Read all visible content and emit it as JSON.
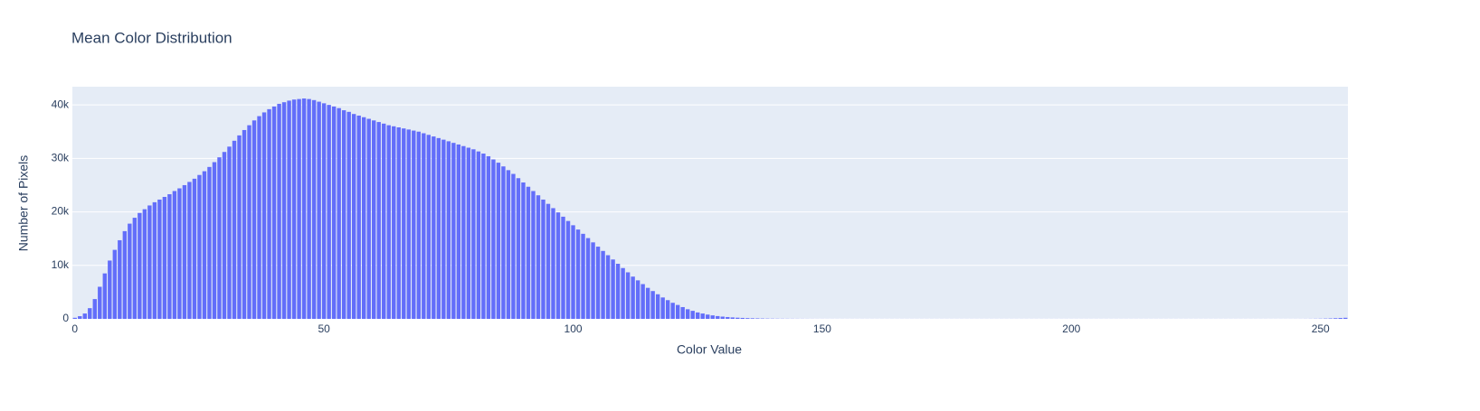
{
  "chart_data": {
    "type": "bar",
    "title": "Mean Color Distribution",
    "x_label": "Color Value",
    "y_label": "Number of Pixels",
    "color": "#636efa",
    "x": [
      0,
      1,
      2,
      3,
      4,
      5,
      6,
      7,
      8,
      9,
      10,
      11,
      12,
      13,
      14,
      15,
      16,
      17,
      18,
      19,
      20,
      21,
      22,
      23,
      24,
      25,
      26,
      27,
      28,
      29,
      30,
      31,
      32,
      33,
      34,
      35,
      36,
      37,
      38,
      39,
      40,
      41,
      42,
      43,
      44,
      45,
      46,
      47,
      48,
      49,
      50,
      51,
      52,
      53,
      54,
      55,
      56,
      57,
      58,
      59,
      60,
      61,
      62,
      63,
      64,
      65,
      66,
      67,
      68,
      69,
      70,
      71,
      72,
      73,
      74,
      75,
      76,
      77,
      78,
      79,
      80,
      81,
      82,
      83,
      84,
      85,
      86,
      87,
      88,
      89,
      90,
      91,
      92,
      93,
      94,
      95,
      96,
      97,
      98,
      99,
      100,
      101,
      102,
      103,
      104,
      105,
      106,
      107,
      108,
      109,
      110,
      111,
      112,
      113,
      114,
      115,
      116,
      117,
      118,
      119,
      120,
      121,
      122,
      123,
      124,
      125,
      126,
      127,
      128,
      129,
      130,
      131,
      132,
      133,
      134,
      135,
      136,
      137,
      138,
      139,
      140,
      141,
      142,
      143,
      144,
      145,
      146,
      147,
      148,
      149,
      150,
      151,
      152,
      153,
      154,
      155,
      156,
      157,
      158,
      159,
      160,
      161,
      162,
      163,
      164,
      165,
      166,
      167,
      168,
      169,
      170,
      171,
      172,
      173,
      174,
      175,
      176,
      177,
      178,
      179,
      180,
      181,
      182,
      183,
      184,
      185,
      186,
      187,
      188,
      189,
      190,
      191,
      192,
      193,
      194,
      195,
      196,
      197,
      198,
      199,
      200,
      201,
      202,
      203,
      204,
      205,
      206,
      207,
      208,
      209,
      210,
      211,
      212,
      213,
      214,
      215,
      216,
      217,
      218,
      219,
      220,
      221,
      222,
      223,
      224,
      225,
      226,
      227,
      228,
      229,
      230,
      231,
      232,
      233,
      234,
      235,
      236,
      237,
      238,
      239,
      240,
      241,
      242,
      243,
      244,
      245,
      246,
      247,
      248,
      249,
      250,
      251,
      252,
      253,
      254,
      255
    ],
    "values": [
      200,
      500,
      1000,
      2000,
      3700,
      6000,
      8500,
      10900,
      12900,
      14700,
      16400,
      17800,
      18900,
      19800,
      20500,
      21200,
      21800,
      22300,
      22800,
      23300,
      23900,
      24400,
      25000,
      25600,
      26200,
      26900,
      27600,
      28400,
      29300,
      30200,
      31200,
      32200,
      33300,
      34300,
      35300,
      36200,
      37100,
      37900,
      38600,
      39200,
      39700,
      40200,
      40500,
      40800,
      41000,
      41100,
      41200,
      41100,
      40900,
      40600,
      40300,
      40000,
      39700,
      39400,
      39000,
      38700,
      38300,
      38000,
      37700,
      37400,
      37100,
      36800,
      36500,
      36200,
      36000,
      35800,
      35600,
      35400,
      35200,
      35000,
      34700,
      34400,
      34100,
      33800,
      33500,
      33200,
      32900,
      32600,
      32300,
      32000,
      31700,
      31300,
      30900,
      30400,
      29800,
      29200,
      28500,
      27800,
      27100,
      26300,
      25500,
      24700,
      23900,
      23100,
      22300,
      21500,
      20700,
      19900,
      19100,
      18300,
      17500,
      16700,
      15900,
      15100,
      14300,
      13500,
      12700,
      11900,
      11100,
      10300,
      9500,
      8700,
      7900,
      7200,
      6500,
      5800,
      5200,
      4600,
      4000,
      3500,
      3000,
      2600,
      2200,
      1800,
      1500,
      1200,
      1000,
      800,
      650,
      520,
      420,
      340,
      270,
      220,
      180,
      140,
      110,
      90,
      70,
      55,
      45,
      38,
      32,
      28,
      24,
      21,
      18,
      16,
      14,
      12,
      11,
      10,
      10,
      10,
      10,
      10,
      10,
      10,
      10,
      10,
      10,
      10,
      10,
      10,
      10,
      10,
      10,
      10,
      10,
      10,
      10,
      10,
      10,
      10,
      10,
      10,
      10,
      10,
      10,
      10,
      10,
      10,
      10,
      10,
      10,
      10,
      10,
      10,
      10,
      10,
      10,
      10,
      10,
      10,
      10,
      10,
      10,
      10,
      10,
      10,
      10,
      10,
      10,
      10,
      10,
      10,
      10,
      10,
      10,
      10,
      10,
      10,
      10,
      10,
      10,
      10,
      10,
      10,
      10,
      10,
      10,
      10,
      10,
      10,
      10,
      10,
      10,
      10,
      10,
      10,
      10,
      10,
      10,
      10,
      10,
      10,
      10,
      10,
      10,
      10,
      9,
      9,
      9,
      9,
      9,
      10,
      12,
      15,
      20,
      30,
      40,
      60,
      80,
      120,
      160,
      200
    ],
    "xlim": [
      -0.5,
      255.5
    ],
    "xticks": [
      0,
      50,
      100,
      150,
      200,
      250
    ],
    "ylim": [
      0,
      43400
    ],
    "yticks": [
      0,
      {
        "value": 10000,
        "label": "10k"
      },
      {
        "value": 20000,
        "label": "20k"
      },
      {
        "value": 30000,
        "label": "30k"
      },
      {
        "value": 40000,
        "label": "40k"
      }
    ],
    "grid": true
  }
}
